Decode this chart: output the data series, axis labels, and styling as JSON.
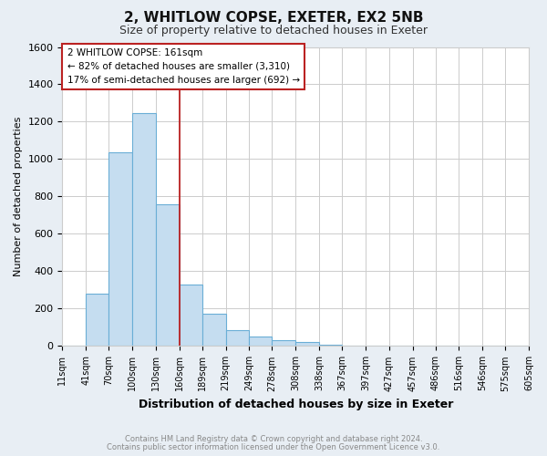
{
  "title": "2, WHITLOW COPSE, EXETER, EX2 5NB",
  "subtitle": "Size of property relative to detached houses in Exeter",
  "xlabel": "Distribution of detached houses by size in Exeter",
  "ylabel": "Number of detached properties",
  "bar_values": [
    0,
    280,
    1035,
    1245,
    760,
    330,
    175,
    85,
    50,
    30,
    20,
    5,
    0,
    0,
    0,
    0,
    0,
    0,
    0,
    0
  ],
  "bin_edges": [
    11,
    41,
    70,
    100,
    130,
    160,
    189,
    219,
    249,
    278,
    308,
    338,
    367,
    397,
    427,
    457,
    486,
    516,
    546,
    575,
    605
  ],
  "tick_labels": [
    "11sqm",
    "41sqm",
    "70sqm",
    "100sqm",
    "130sqm",
    "160sqm",
    "189sqm",
    "219sqm",
    "249sqm",
    "278sqm",
    "308sqm",
    "338sqm",
    "367sqm",
    "397sqm",
    "427sqm",
    "457sqm",
    "486sqm",
    "516sqm",
    "546sqm",
    "575sqm",
    "605sqm"
  ],
  "bar_color": "#c5ddf0",
  "bar_edge_color": "#6aaed6",
  "vline_x": 160,
  "vline_color": "#bb2222",
  "ylim": [
    0,
    1600
  ],
  "yticks": [
    0,
    200,
    400,
    600,
    800,
    1000,
    1200,
    1400,
    1600
  ],
  "annotation_title": "2 WHITLOW COPSE: 161sqm",
  "annotation_line1": "← 82% of detached houses are smaller (3,310)",
  "annotation_line2": "17% of semi-detached houses are larger (692) →",
  "annotation_box_color": "#ffffff",
  "annotation_box_edge_color": "#bb2222",
  "footer1": "Contains HM Land Registry data © Crown copyright and database right 2024.",
  "footer2": "Contains public sector information licensed under the Open Government Licence v3.0.",
  "background_color": "#e8eef4",
  "plot_bg_color": "#ffffff",
  "grid_color": "#cccccc",
  "title_fontsize": 11,
  "subtitle_fontsize": 9,
  "ylabel_fontsize": 8,
  "xlabel_fontsize": 9,
  "tick_fontsize": 7,
  "footer_fontsize": 6,
  "annotation_fontsize": 7.5
}
